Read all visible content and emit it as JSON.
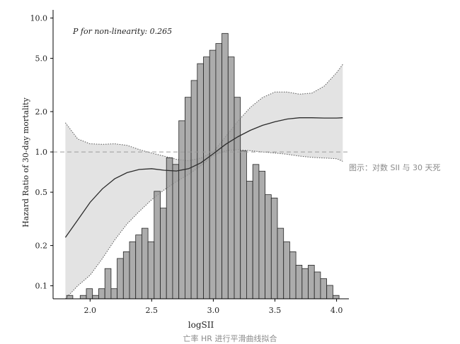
{
  "side_caption": "图示：对数 SII 与 30 天死",
  "bottom_caption": "亡率 HR 进行平滑曲线拟合",
  "chart_data": {
    "type": "histogram-with-spline",
    "annotation": "P for non-linearity: 0.265",
    "xlabel": "logSII",
    "ylabel": "Hazard Ratio of 30-day mortality",
    "xlim": [
      1.7,
      4.1
    ],
    "ylim": [
      0.08,
      11.5
    ],
    "y_scale": "log",
    "x_ticks": [
      2.0,
      2.5,
      3.0,
      3.5,
      4.0
    ],
    "x_tick_labels": [
      "2.0",
      "2.5",
      "3.0",
      "3.5",
      "4.0"
    ],
    "y_ticks": [
      0.1,
      0.2,
      0.5,
      1.0,
      2.0,
      5.0,
      10.0
    ],
    "y_tick_labels": [
      "0.1",
      "0.2",
      "0.5",
      "1.0",
      "2.0",
      "5.0",
      "10.0"
    ],
    "reference_line": 1.0,
    "histogram": {
      "bin_width": 0.05,
      "bin_starts": [
        1.81,
        1.92,
        1.97,
        2.02,
        2.07,
        2.12,
        2.17,
        2.22,
        2.27,
        2.32,
        2.37,
        2.42,
        2.47,
        2.52,
        2.57,
        2.62,
        2.67,
        2.72,
        2.77,
        2.82,
        2.87,
        2.92,
        2.97,
        3.02,
        3.07,
        3.12,
        3.17,
        3.22,
        3.27,
        3.32,
        3.37,
        3.42,
        3.47,
        3.52,
        3.57,
        3.62,
        3.67,
        3.72,
        3.77,
        3.82,
        3.87,
        3.92,
        3.97
      ],
      "heights": [
        1,
        1,
        3,
        1,
        3,
        9,
        3,
        12,
        14,
        17,
        19,
        21,
        17,
        32,
        27,
        42,
        40,
        53,
        60,
        65,
        70,
        72,
        74,
        76,
        79,
        72,
        60,
        44,
        35,
        40,
        38,
        31,
        30,
        21,
        17,
        14,
        10,
        9,
        10,
        8,
        6,
        4,
        1
      ],
      "frequency_max": 86
    },
    "spline": {
      "x": [
        1.8,
        1.9,
        2.0,
        2.1,
        2.2,
        2.3,
        2.4,
        2.5,
        2.6,
        2.7,
        2.8,
        2.9,
        3.0,
        3.1,
        3.2,
        3.3,
        3.4,
        3.5,
        3.6,
        3.7,
        3.8,
        3.9,
        4.0,
        4.05
      ],
      "hr": [
        0.23,
        0.31,
        0.42,
        0.53,
        0.63,
        0.7,
        0.74,
        0.75,
        0.73,
        0.72,
        0.75,
        0.83,
        0.97,
        1.14,
        1.3,
        1.45,
        1.58,
        1.68,
        1.76,
        1.8,
        1.8,
        1.79,
        1.79,
        1.8
      ],
      "ci_lower": [
        0.08,
        0.1,
        0.12,
        0.16,
        0.22,
        0.29,
        0.36,
        0.44,
        0.52,
        0.6,
        0.68,
        0.79,
        0.94,
        1.02,
        1.04,
        1.02,
        1.0,
        0.98,
        0.96,
        0.93,
        0.91,
        0.9,
        0.89,
        0.85
      ],
      "ci_upper": [
        1.65,
        1.25,
        1.15,
        1.14,
        1.15,
        1.12,
        1.04,
        0.98,
        0.93,
        0.88,
        0.86,
        0.9,
        1.0,
        1.3,
        1.7,
        2.15,
        2.55,
        2.8,
        2.8,
        2.7,
        2.75,
        3.1,
        3.9,
        4.5
      ]
    }
  }
}
